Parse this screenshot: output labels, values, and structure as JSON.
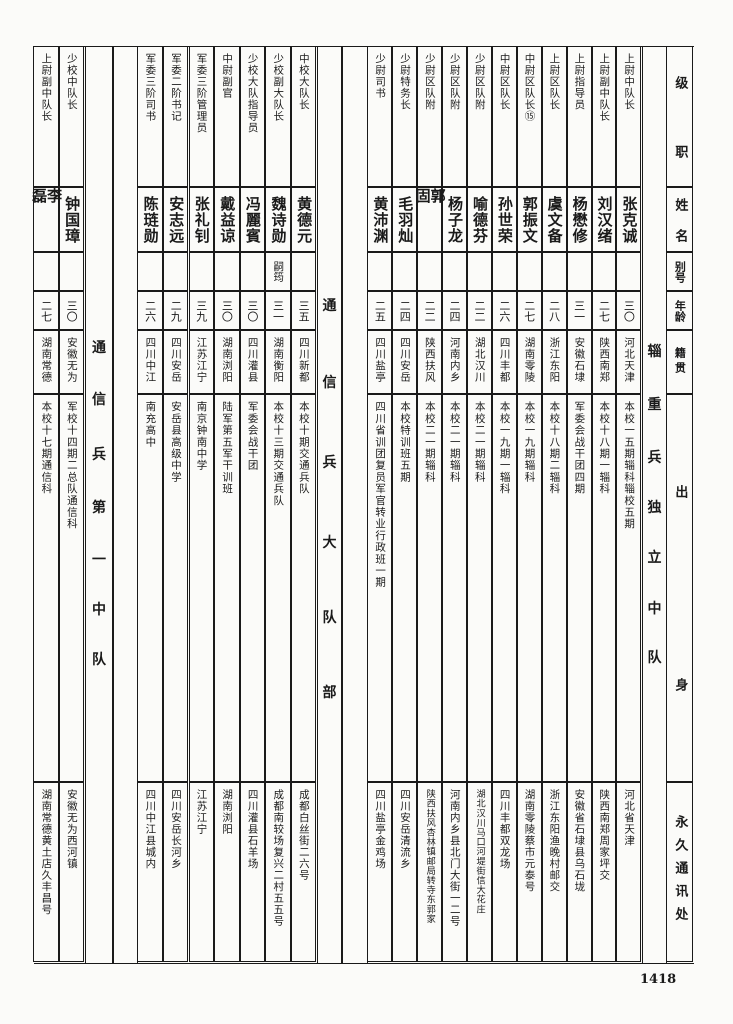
{
  "header": {
    "rank": "级　职",
    "rank_chars": [
      "级",
      "职"
    ],
    "name_chars": [
      "姓",
      "名"
    ],
    "alias": "别号",
    "age": "年龄",
    "native": "籍贯",
    "origin_chars": [
      "出",
      "身"
    ],
    "address": "永久通讯处"
  },
  "sections": [
    {
      "title": "辎重兵独立中队",
      "people": [
        {
          "rank": "上尉中队长",
          "name": "张克诚",
          "alias": "",
          "age": "三〇",
          "native": "河北天津",
          "education": "本校一五期辎科辎校五期",
          "address": "河北省天津"
        },
        {
          "rank": "上尉副中队长",
          "name": "刘汉绪",
          "alias": "",
          "age": "二七",
          "native": "陕西南郑",
          "education": "本校十八期一辎科",
          "address": "陕西南郑周家坪交"
        },
        {
          "rank": "上尉指导员",
          "name": "杨懋修",
          "alias": "",
          "age": "三一",
          "native": "安徽石埭",
          "education": "军委会战干团四期",
          "address": "安徽省石埭县乌石垅"
        },
        {
          "rank": "上尉区队长",
          "name": "虞文备",
          "alias": "",
          "age": "二八",
          "native": "浙江东阳",
          "education": "本校十八期二辎科",
          "address": "浙江东阳渔晚村邮交"
        },
        {
          "rank": "中尉区队长⑮",
          "name": "郭振文",
          "alias": "",
          "age": "二七",
          "native": "湖南零陵",
          "education": "本校一九期辎科",
          "address": "湖南零陵蔡市元泰号"
        },
        {
          "rank": "中尉区队长",
          "name": "孙世荣",
          "alias": "",
          "age": "二六",
          "native": "四川丰都",
          "education": "本校一九期一辎科",
          "address": "四川丰都双龙场"
        },
        {
          "rank": "少尉区队附",
          "name": "喻德芬",
          "alias": "",
          "age": "二二",
          "native": "湖北汉川",
          "education": "本校二一期辎科",
          "address": "湖北汉川马口河堤街信大花庄"
        },
        {
          "rank": "少尉区队附",
          "name": "杨子龙",
          "alias": "",
          "age": "二四",
          "native": "河南内乡",
          "education": "本校二一期辎科",
          "address": "河南内乡县北门大街一二号"
        },
        {
          "rank": "少尉区队附",
          "name": "郭固",
          "alias": "",
          "age": "二二",
          "native": "陕西扶风",
          "education": "本校二一期辎科",
          "address": "陕西扶风杏林镇邮局转寺东郭家"
        },
        {
          "rank": "少尉特务长",
          "name": "毛羽灿",
          "alias": "",
          "age": "二四",
          "native": "四川安岳",
          "education": "本校特训班五期",
          "address": "四川安岳清流乡"
        },
        {
          "rank": "少尉司书",
          "name": "黄沛渊",
          "alias": "",
          "age": "二五",
          "native": "四川盐亭",
          "education": "四川省训团复员军官转业行政班一期",
          "address": "四川盐亭金鸡场"
        }
      ]
    },
    {
      "title": "通信兵大队部",
      "people": [
        {
          "rank": "中校大队长",
          "name": "黄德元",
          "alias": "",
          "age": "三五",
          "native": "四川新都",
          "education": "本校十期交通兵队",
          "address": "成都白丝街二六号"
        },
        {
          "rank": "少校副大队长",
          "name": "魏诗勋",
          "alias": "嗣筠",
          "age": "三一",
          "native": "湖南衡阳",
          "education": "本校十三期交通兵队",
          "address": "成都南较场复兴二村五五号"
        },
        {
          "rank": "少校大队指导员",
          "name": "冯麗賓",
          "alias": "",
          "age": "三〇",
          "native": "四川灌县",
          "education": "军委会战干团",
          "address": "四川灌县石羊场"
        },
        {
          "rank": "中尉副官",
          "name": "戴益谅",
          "alias": "",
          "age": "三〇",
          "native": "湖南浏阳",
          "education": "陆军第五军干训班",
          "address": "湖南浏阳"
        },
        {
          "rank": "军委三阶管理员",
          "name": "张礼钊",
          "alias": "",
          "age": "三九",
          "native": "江苏江宁",
          "education": "南京钟南中学",
          "address": "江苏江宁"
        },
        {
          "rank": "军委二阶书记",
          "name": "安志远",
          "alias": "",
          "age": "二九",
          "native": "四川安岳",
          "education": "安岳县高级中学",
          "address": "四川安岳长河乡"
        },
        {
          "rank": "军委三阶司书",
          "name": "陈琏勋",
          "alias": "",
          "age": "二六",
          "native": "四川中江",
          "education": "南充高中",
          "address": "四川中江县城内"
        }
      ]
    },
    {
      "title": "通信兵第一中队",
      "people": [
        {
          "rank": "少校中队长",
          "name": "钟国璋",
          "alias": "",
          "age": "三〇",
          "native": "安徽无为",
          "education": "军校十四期二总队通信科",
          "address": "安徽无为西河镇"
        },
        {
          "rank": "上尉副中队长",
          "name": "李磊",
          "alias": "",
          "age": "二七",
          "native": "湖南常德",
          "education": "本校十七期通信科",
          "address": "湖南常德黄土店久丰昌号"
        }
      ]
    }
  ],
  "page_number": "1418"
}
